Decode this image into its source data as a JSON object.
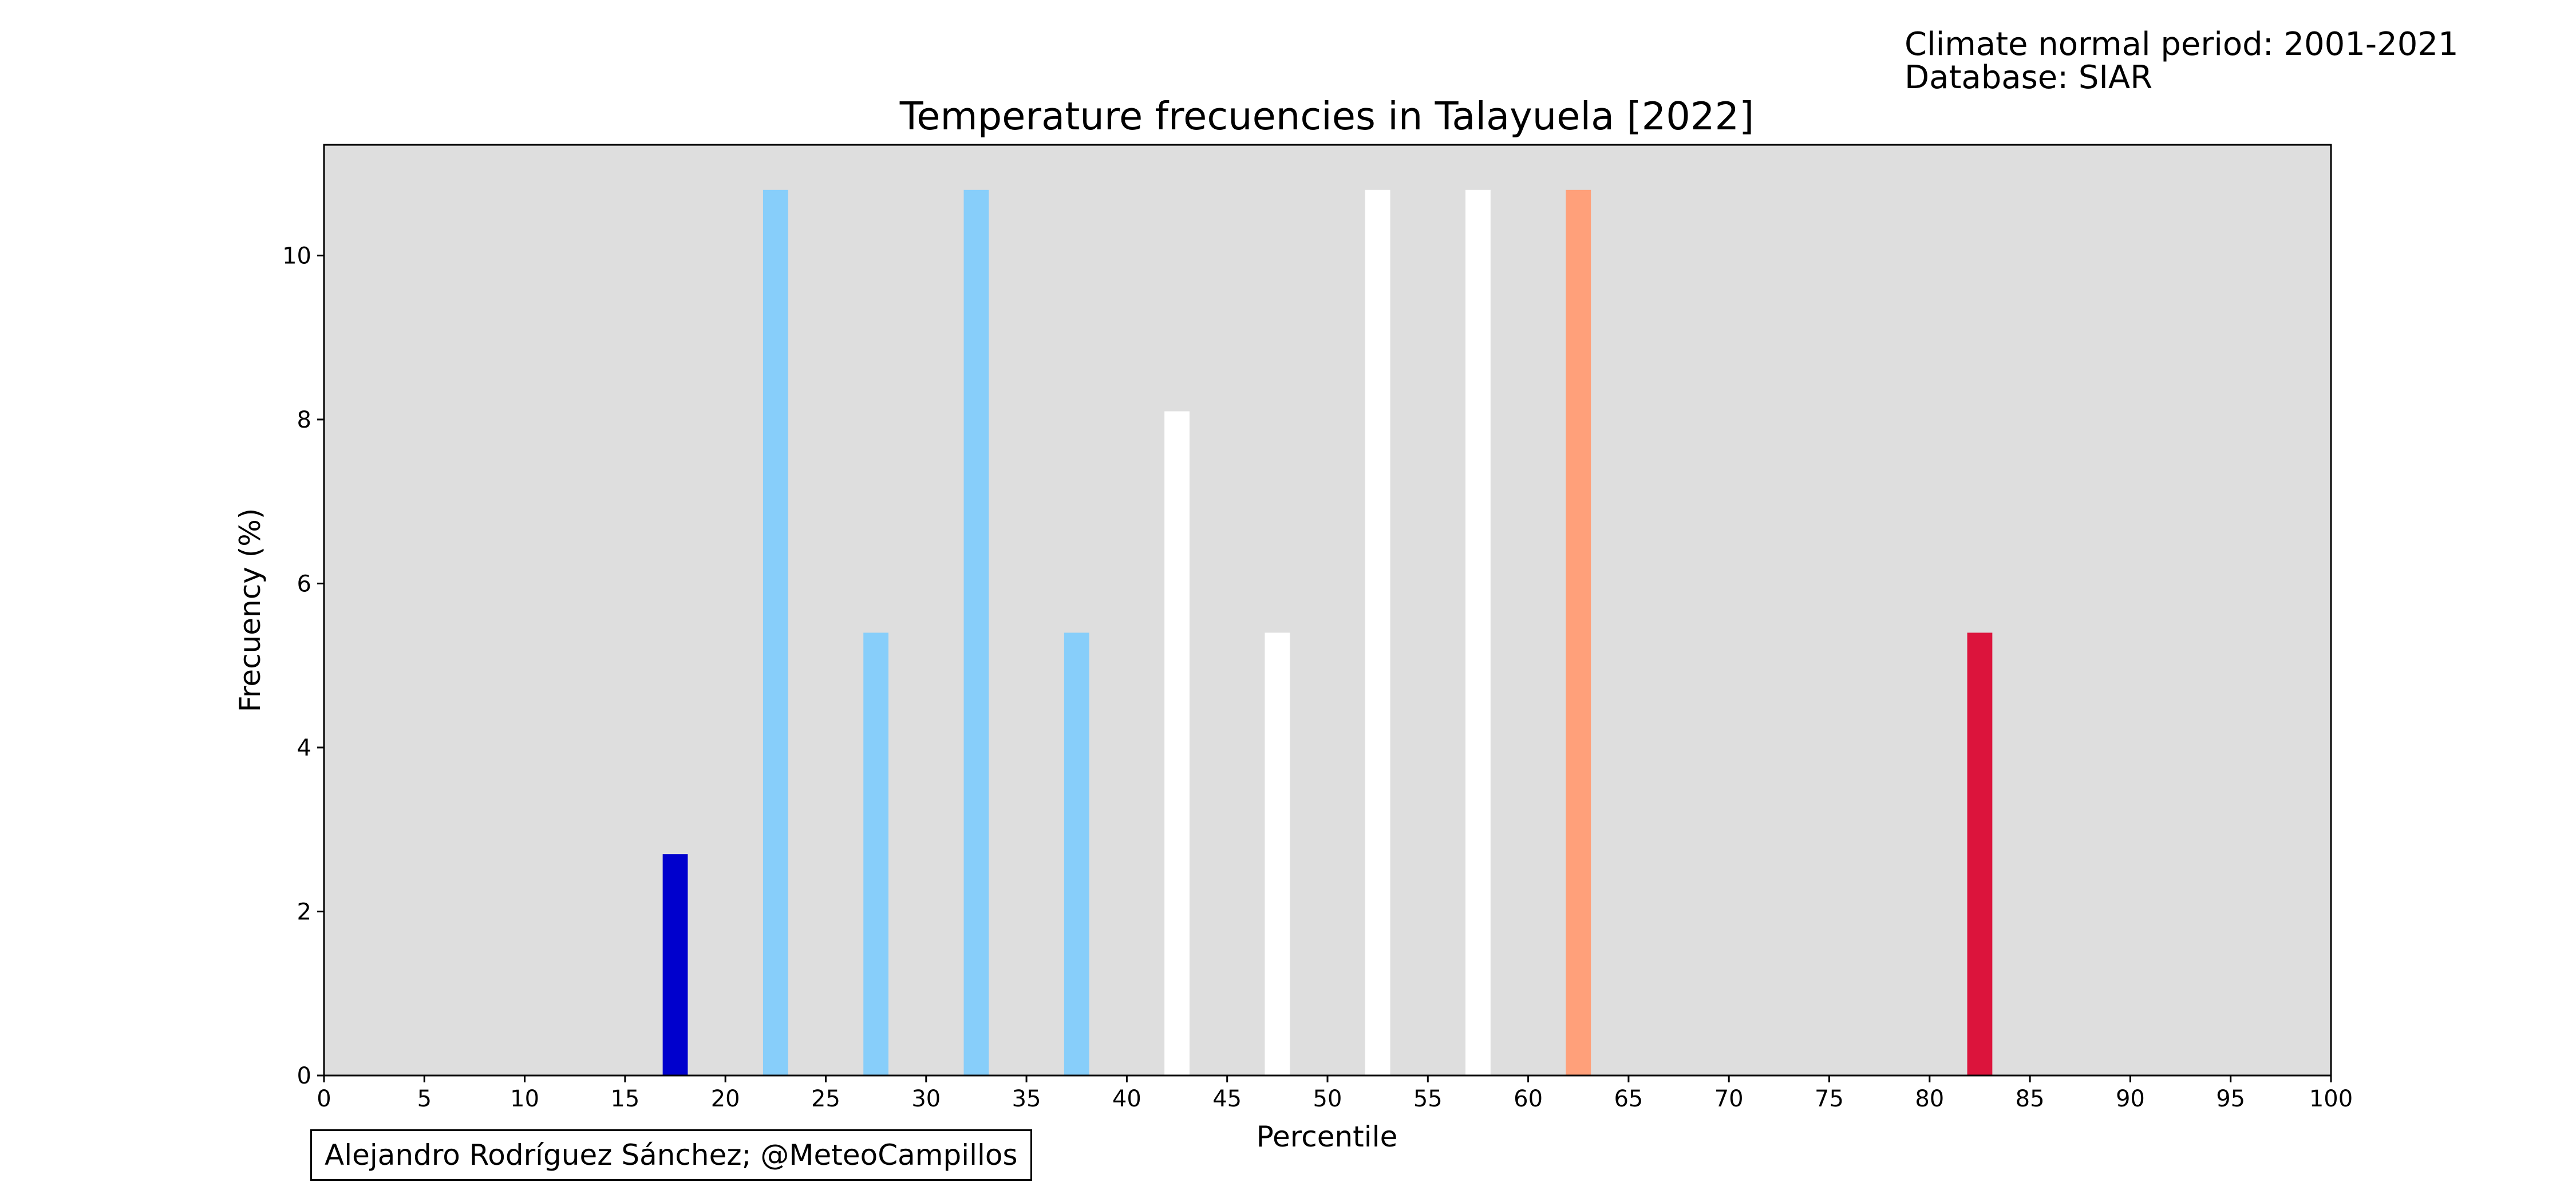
{
  "notes": {
    "period": "Climate normal period: 2001-2021",
    "database": "Database: SIAR"
  },
  "credit": "Alejandro Rodríguez Sánchez; @MeteoCampillos",
  "chart_data": {
    "type": "bar",
    "title": "Temperature frecuencies in Talayuela [2022]",
    "xlabel": "Percentile",
    "ylabel": "Frecuency (%)",
    "xlim": [
      0,
      100
    ],
    "ylim": [
      0,
      11.35
    ],
    "x_ticks": [
      0,
      5,
      10,
      15,
      20,
      25,
      30,
      35,
      40,
      45,
      50,
      55,
      60,
      65,
      70,
      75,
      80,
      85,
      90,
      95,
      100
    ],
    "y_ticks": [
      0,
      2,
      4,
      6,
      8,
      10
    ],
    "bar_width": 1.25,
    "plot_background": "#dedede",
    "grid": false,
    "bars": [
      {
        "x": 17.5,
        "value": 2.7,
        "color": "#0000cd"
      },
      {
        "x": 22.5,
        "value": 10.8,
        "color": "#87cefa"
      },
      {
        "x": 27.5,
        "value": 5.4,
        "color": "#87cefa"
      },
      {
        "x": 32.5,
        "value": 10.8,
        "color": "#87cefa"
      },
      {
        "x": 37.5,
        "value": 5.4,
        "color": "#87cefa"
      },
      {
        "x": 42.5,
        "value": 8.1,
        "color": "#ffffff"
      },
      {
        "x": 47.5,
        "value": 5.4,
        "color": "#ffffff"
      },
      {
        "x": 52.5,
        "value": 10.8,
        "color": "#ffffff"
      },
      {
        "x": 57.5,
        "value": 10.8,
        "color": "#ffffff"
      },
      {
        "x": 62.5,
        "value": 10.8,
        "color": "#ffa07a"
      },
      {
        "x": 82.5,
        "value": 5.4,
        "color": "#dc143c"
      }
    ]
  }
}
